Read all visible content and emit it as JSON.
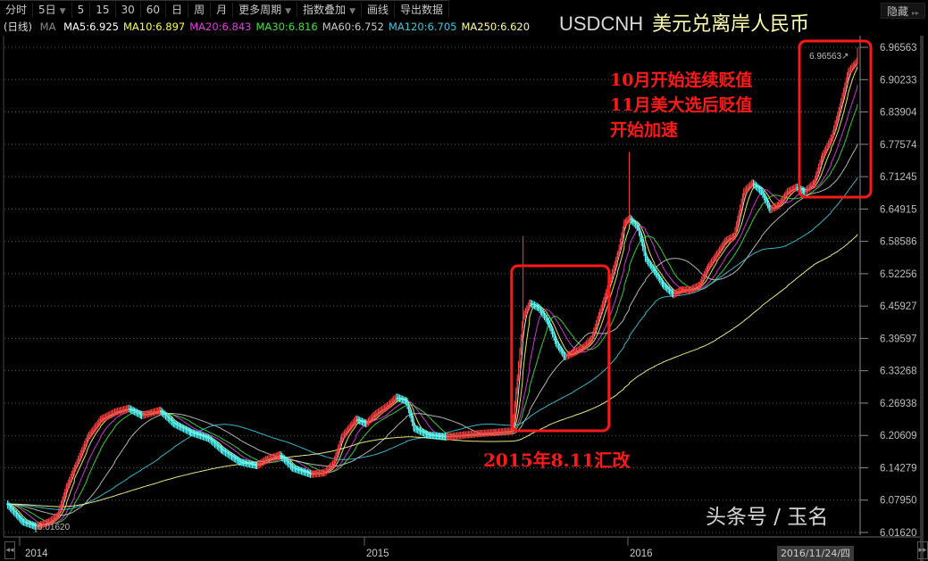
{
  "toolbar": {
    "items": [
      {
        "label": "分时"
      },
      {
        "label": "5日",
        "dropdown": true
      },
      {
        "label": "5"
      },
      {
        "label": "15"
      },
      {
        "label": "30"
      },
      {
        "label": "60"
      },
      {
        "label": "日"
      },
      {
        "label": "周"
      },
      {
        "label": "月"
      },
      {
        "label": "更多周期",
        "dropdown": true
      },
      {
        "label": "指数叠加",
        "dropdown": true
      },
      {
        "label": "画线"
      },
      {
        "label": "导出数据"
      }
    ],
    "dropdown_glyph": "▼",
    "hide_label": "隐藏",
    "hide_glyph": "▸▸"
  },
  "legend": {
    "period": "(日线)",
    "ma_label": "MA",
    "items": [
      {
        "text": "MA5:6.925",
        "color": "#ffffff"
      },
      {
        "text": "MA10:6.897",
        "color": "#ffff4d"
      },
      {
        "text": "MA20:6.843",
        "color": "#e040e0"
      },
      {
        "text": "MA30:6.816",
        "color": "#40e040"
      },
      {
        "text": "MA60:6.752",
        "color": "#c8c8c8"
      },
      {
        "text": "MA120:6.705",
        "color": "#40c8d8"
      },
      {
        "text": "MA250:6.620",
        "color": "#ffff99"
      }
    ]
  },
  "title": {
    "code": "USDCNH",
    "name": "美元兑离岸人民币"
  },
  "annotations": {
    "right_lines": [
      "10月开始连续贬值",
      "11月美大选后贬值",
      "开始加速"
    ],
    "reform": "2015年8.11汇改"
  },
  "watermark": "头条号 / 玉名",
  "last_date": "2016/11/24/四",
  "colors": {
    "up": "#ff4040",
    "down": "#54ffff",
    "box": "#ff1a1a",
    "axis": "#8a8a8a",
    "grid": "#5a5a5a"
  },
  "chart_data": {
    "type": "candlestick",
    "symbol": "USDCNH",
    "ylim": [
      6.0162,
      6.96563
    ],
    "yticks": [
      "6.96563",
      "6.90233",
      "6.83904",
      "6.77574",
      "6.71245",
      "6.64915",
      "6.58586",
      "6.52256",
      "6.45927",
      "6.39597",
      "6.33268",
      "6.26938",
      "6.20609",
      "6.14279",
      "6.07950",
      "6.01620"
    ],
    "xticks": [
      {
        "label": "2014",
        "date": "2014-01-02"
      },
      {
        "label": "2015",
        "date": "2015-01-02"
      },
      {
        "label": "2016",
        "date": "2016-01-04"
      }
    ],
    "max_label": "6.96563",
    "min_label": "6.01620",
    "close": [
      [
        "2013-12-19",
        6.072
      ],
      [
        "2014-01-05",
        6.037
      ],
      [
        "2014-01-19",
        6.028
      ],
      [
        "2014-02-02",
        6.037
      ],
      [
        "2014-02-11",
        6.049
      ],
      [
        "2014-02-21",
        6.107
      ],
      [
        "2014-03-01",
        6.142
      ],
      [
        "2014-03-15",
        6.203
      ],
      [
        "2014-03-29",
        6.238
      ],
      [
        "2014-04-13",
        6.252
      ],
      [
        "2014-04-27",
        6.259
      ],
      [
        "2014-05-11",
        6.245
      ],
      [
        "2014-05-30",
        6.255
      ],
      [
        "2014-06-14",
        6.229
      ],
      [
        "2014-07-02",
        6.212
      ],
      [
        "2014-07-21",
        6.2
      ],
      [
        "2014-08-04",
        6.177
      ],
      [
        "2014-08-23",
        6.154
      ],
      [
        "2014-09-10",
        6.147
      ],
      [
        "2014-09-20",
        6.159
      ],
      [
        "2014-10-04",
        6.168
      ],
      [
        "2014-10-18",
        6.142
      ],
      [
        "2014-11-06",
        6.13
      ],
      [
        "2014-11-20",
        6.133
      ],
      [
        "2014-11-30",
        6.151
      ],
      [
        "2014-12-09",
        6.203
      ],
      [
        "2014-12-24",
        6.238
      ],
      [
        "2015-01-04",
        6.229
      ],
      [
        "2015-01-16",
        6.247
      ],
      [
        "2015-02-03",
        6.264
      ],
      [
        "2015-02-15",
        6.281
      ],
      [
        "2015-03-01",
        6.273
      ],
      [
        "2015-03-12",
        6.22
      ],
      [
        "2015-03-31",
        6.207
      ],
      [
        "2015-04-25",
        6.203
      ],
      [
        "2015-05-20",
        6.207
      ],
      [
        "2015-06-13",
        6.21
      ],
      [
        "2015-07-03",
        6.212
      ],
      [
        "2015-07-27",
        6.215
      ],
      [
        "2015-08-11",
        6.439
      ],
      [
        "2015-08-20",
        6.465
      ],
      [
        "2015-09-01",
        6.456
      ],
      [
        "2015-09-14",
        6.43
      ],
      [
        "2015-09-26",
        6.386
      ],
      [
        "2015-10-08",
        6.36
      ],
      [
        "2015-10-21",
        6.369
      ],
      [
        "2015-11-02",
        6.378
      ],
      [
        "2015-11-14",
        6.395
      ],
      [
        "2015-11-26",
        6.447
      ],
      [
        "2015-12-08",
        6.5
      ],
      [
        "2015-12-21",
        6.561
      ],
      [
        "2015-12-30",
        6.622
      ],
      [
        "2016-01-06",
        6.631
      ],
      [
        "2016-01-18",
        6.613
      ],
      [
        "2016-01-29",
        6.552
      ],
      [
        "2016-02-11",
        6.526
      ],
      [
        "2016-02-23",
        6.5
      ],
      [
        "2016-03-08",
        6.482
      ],
      [
        "2016-03-20",
        6.491
      ],
      [
        "2016-04-01",
        6.491
      ],
      [
        "2016-04-14",
        6.5
      ],
      [
        "2016-04-26",
        6.535
      ],
      [
        "2016-05-09",
        6.561
      ],
      [
        "2016-05-21",
        6.587
      ],
      [
        "2016-06-02",
        6.596
      ],
      [
        "2016-06-16",
        6.683
      ],
      [
        "2016-06-28",
        6.7
      ],
      [
        "2016-07-11",
        6.683
      ],
      [
        "2016-07-23",
        6.648
      ],
      [
        "2016-08-04",
        6.657
      ],
      [
        "2016-08-17",
        6.683
      ],
      [
        "2016-08-29",
        6.692
      ],
      [
        "2016-09-10",
        6.683
      ],
      [
        "2016-09-23",
        6.7
      ],
      [
        "2016-10-05",
        6.753
      ],
      [
        "2016-10-18",
        6.788
      ],
      [
        "2016-10-30",
        6.849
      ],
      [
        "2016-11-11",
        6.918
      ],
      [
        "2016-11-24",
        6.94
      ]
    ],
    "spikes": [
      {
        "date": "2014-01-19",
        "low": 6.0162
      },
      {
        "date": "2015-08-11",
        "high": 6.596
      },
      {
        "date": "2016-01-06",
        "high": 6.761
      },
      {
        "date": "2016-11-24",
        "high": 6.96563
      }
    ],
    "moving_averages": [
      5,
      10,
      20,
      30,
      60,
      120,
      250
    ],
    "highlight_periods": [
      [
        "2015-08-05",
        "2015-11-20"
      ],
      [
        "2016-09-01",
        "2016-11-24"
      ]
    ]
  }
}
